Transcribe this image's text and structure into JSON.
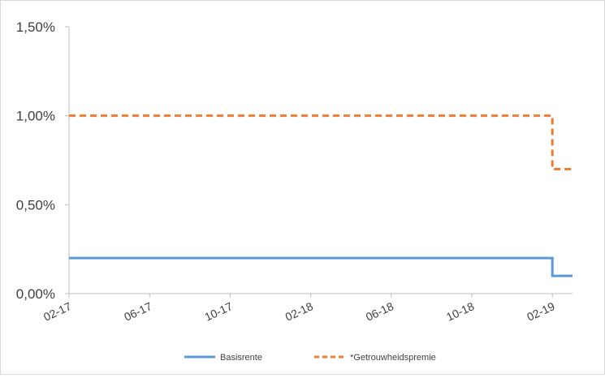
{
  "chart_data": {
    "type": "line",
    "step": true,
    "title": "",
    "xlabel": "",
    "ylabel": "",
    "ylim": [
      0,
      1.5
    ],
    "yticks": [
      0,
      0.5,
      1.0,
      1.5
    ],
    "ytick_labels": [
      "0,00%",
      "0,50%",
      "1,00%",
      "1,50%"
    ],
    "xlim": [
      "02-17",
      "03-19"
    ],
    "xtick_labels": [
      "02-17",
      "06-17",
      "10-17",
      "02-18",
      "06-18",
      "10-18",
      "02-19"
    ],
    "grid": false,
    "legend_position": "bottom",
    "series": [
      {
        "name": "Basisrente",
        "color": "#5b9bd5",
        "dash": "solid",
        "x": [
          "02-17",
          "02-19",
          "03-19"
        ],
        "values": [
          0.2,
          0.1,
          0.1
        ]
      },
      {
        "name": "*Getrouwheidspremie",
        "color": "#ed7d31",
        "dash": "dashed",
        "x": [
          "02-17",
          "02-19",
          "03-19"
        ],
        "values": [
          1.0,
          0.7,
          0.7
        ]
      }
    ]
  }
}
